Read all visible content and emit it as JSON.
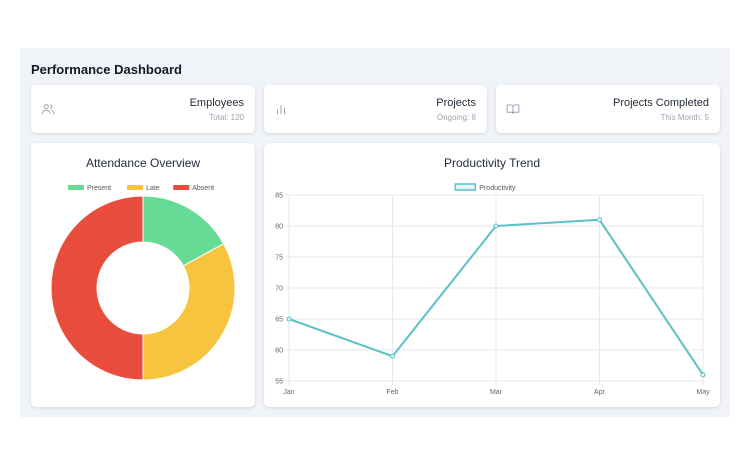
{
  "dashboard": {
    "title": "Performance Dashboard"
  },
  "stats": [
    {
      "label": "Employees",
      "sub": "Total: 120",
      "icon": "users-icon"
    },
    {
      "label": "Projects",
      "sub": "Ongoing: 8",
      "icon": "bar-chart-icon"
    },
    {
      "label": "Projects Completed",
      "sub": "This Month: 5",
      "icon": "book-open-icon"
    }
  ],
  "colors": {
    "present": "#66db96",
    "late": "#f6c43f",
    "absent": "#e84c3d",
    "productivity": "#5bc0c8"
  },
  "chart_data": [
    {
      "type": "pie",
      "title": "Attendance Overview",
      "labels": [
        "Present",
        "Late",
        "Absent"
      ],
      "values": [
        17,
        33,
        50
      ],
      "legend": "top"
    },
    {
      "type": "line",
      "title": "Productivity Trend",
      "categories": [
        "Jan",
        "Feb",
        "Mar",
        "Apr",
        "May"
      ],
      "series": [
        {
          "name": "Productivity",
          "values": [
            65,
            59,
            80,
            81,
            56
          ]
        }
      ],
      "ylim": [
        55,
        85
      ],
      "yticks": [
        85,
        80,
        75,
        70,
        65,
        60,
        55
      ],
      "grid": true,
      "legend": "top"
    }
  ]
}
